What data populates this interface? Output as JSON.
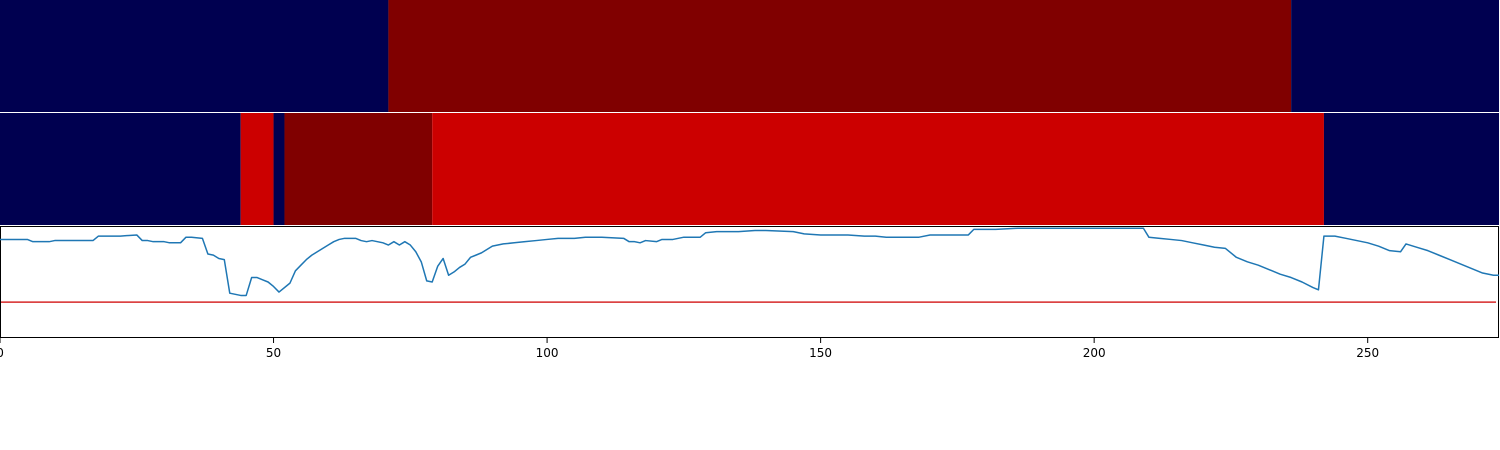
{
  "chart_data": [
    {
      "type": "heatmap",
      "xlim": [
        0,
        274
      ],
      "colors": {
        "low": "#000050",
        "mid": "#cc0000",
        "high": "#800000"
      },
      "segments": [
        {
          "start": 0,
          "end": 71,
          "level": "low"
        },
        {
          "start": 71,
          "end": 236,
          "level": "high"
        },
        {
          "start": 236,
          "end": 274,
          "level": "low"
        }
      ]
    },
    {
      "type": "heatmap",
      "xlim": [
        0,
        274
      ],
      "colors": {
        "low": "#000050",
        "mid": "#cc0000",
        "high": "#800000"
      },
      "segments": [
        {
          "start": 0,
          "end": 44,
          "level": "low"
        },
        {
          "start": 44,
          "end": 50,
          "level": "mid"
        },
        {
          "start": 50,
          "end": 52,
          "level": "low"
        },
        {
          "start": 52,
          "end": 79,
          "level": "high"
        },
        {
          "start": 79,
          "end": 242,
          "level": "mid"
        },
        {
          "start": 242,
          "end": 274,
          "level": "low"
        }
      ]
    },
    {
      "type": "line",
      "xlim": [
        0,
        274
      ],
      "ylim": [
        0,
        1
      ],
      "xticks": [
        0,
        50,
        100,
        150,
        200,
        250
      ],
      "xlabel": "",
      "ylabel": "",
      "grid": false,
      "line_color": "#1f77b4",
      "threshold": 0.32,
      "threshold_color": "#d62728",
      "series": [
        {
          "points": [
            [
              0,
              0.88
            ],
            [
              5,
              0.88
            ],
            [
              6,
              0.86
            ],
            [
              9,
              0.86
            ],
            [
              10,
              0.87
            ],
            [
              13,
              0.87
            ],
            [
              17,
              0.87
            ],
            [
              18,
              0.91
            ],
            [
              22,
              0.91
            ],
            [
              25,
              0.92
            ],
            [
              26,
              0.87
            ],
            [
              27,
              0.87
            ],
            [
              28,
              0.86
            ],
            [
              30,
              0.86
            ],
            [
              31,
              0.85
            ],
            [
              33,
              0.85
            ],
            [
              34,
              0.9
            ],
            [
              35,
              0.9
            ],
            [
              37,
              0.89
            ],
            [
              38,
              0.75
            ],
            [
              39,
              0.74
            ],
            [
              40,
              0.71
            ],
            [
              41,
              0.7
            ],
            [
              42,
              0.4
            ],
            [
              44,
              0.38
            ],
            [
              45,
              0.38
            ],
            [
              46,
              0.54
            ],
            [
              47,
              0.54
            ],
            [
              48,
              0.52
            ],
            [
              49,
              0.5
            ],
            [
              50,
              0.46
            ],
            [
              51,
              0.41
            ],
            [
              53,
              0.49
            ],
            [
              54,
              0.6
            ],
            [
              55,
              0.65
            ],
            [
              56,
              0.7
            ],
            [
              57,
              0.74
            ],
            [
              58,
              0.77
            ],
            [
              59,
              0.8
            ],
            [
              60,
              0.83
            ],
            [
              61,
              0.86
            ],
            [
              62,
              0.88
            ],
            [
              63,
              0.89
            ],
            [
              64,
              0.89
            ],
            [
              65,
              0.89
            ],
            [
              66,
              0.87
            ],
            [
              67,
              0.86
            ],
            [
              68,
              0.87
            ],
            [
              69,
              0.86
            ],
            [
              70,
              0.85
            ],
            [
              71,
              0.83
            ],
            [
              72,
              0.86
            ],
            [
              73,
              0.83
            ],
            [
              74,
              0.86
            ],
            [
              75,
              0.83
            ],
            [
              76,
              0.77
            ],
            [
              77,
              0.68
            ],
            [
              78,
              0.51
            ],
            [
              79,
              0.5
            ],
            [
              80,
              0.64
            ],
            [
              81,
              0.71
            ],
            [
              82,
              0.56
            ],
            [
              83,
              0.59
            ],
            [
              84,
              0.63
            ],
            [
              85,
              0.66
            ],
            [
              86,
              0.72
            ],
            [
              87,
              0.74
            ],
            [
              88,
              0.76
            ],
            [
              89,
              0.79
            ],
            [
              90,
              0.82
            ],
            [
              92,
              0.84
            ],
            [
              94,
              0.85
            ],
            [
              96,
              0.86
            ],
            [
              98,
              0.87
            ],
            [
              100,
              0.88
            ],
            [
              102,
              0.89
            ],
            [
              105,
              0.89
            ],
            [
              107,
              0.9
            ],
            [
              110,
              0.9
            ],
            [
              114,
              0.89
            ],
            [
              115,
              0.86
            ],
            [
              116,
              0.86
            ],
            [
              117,
              0.85
            ],
            [
              118,
              0.87
            ],
            [
              120,
              0.86
            ],
            [
              121,
              0.88
            ],
            [
              123,
              0.88
            ],
            [
              125,
              0.9
            ],
            [
              128,
              0.9
            ],
            [
              129,
              0.94
            ],
            [
              131,
              0.95
            ],
            [
              135,
              0.95
            ],
            [
              138,
              0.96
            ],
            [
              140,
              0.96
            ],
            [
              145,
              0.95
            ],
            [
              147,
              0.93
            ],
            [
              150,
              0.92
            ],
            [
              155,
              0.92
            ],
            [
              158,
              0.91
            ],
            [
              160,
              0.91
            ],
            [
              162,
              0.9
            ],
            [
              165,
              0.9
            ],
            [
              168,
              0.9
            ],
            [
              170,
              0.92
            ],
            [
              173,
              0.92
            ],
            [
              177,
              0.92
            ],
            [
              178,
              0.97
            ],
            [
              182,
              0.97
            ],
            [
              186,
              0.98
            ],
            [
              190,
              0.98
            ],
            [
              195,
              0.98
            ],
            [
              200,
              0.98
            ],
            [
              205,
              0.98
            ],
            [
              209,
              0.98
            ],
            [
              210,
              0.9
            ],
            [
              212,
              0.89
            ],
            [
              214,
              0.88
            ],
            [
              216,
              0.87
            ],
            [
              218,
              0.85
            ],
            [
              220,
              0.83
            ],
            [
              222,
              0.81
            ],
            [
              224,
              0.8
            ],
            [
              226,
              0.72
            ],
            [
              228,
              0.68
            ],
            [
              230,
              0.65
            ],
            [
              232,
              0.61
            ],
            [
              234,
              0.57
            ],
            [
              236,
              0.54
            ],
            [
              238,
              0.5
            ],
            [
              240,
              0.45
            ],
            [
              241,
              0.43
            ],
            [
              242,
              0.91
            ],
            [
              244,
              0.91
            ],
            [
              246,
              0.89
            ],
            [
              248,
              0.87
            ],
            [
              250,
              0.85
            ],
            [
              252,
              0.82
            ],
            [
              254,
              0.78
            ],
            [
              256,
              0.77
            ],
            [
              257,
              0.84
            ],
            [
              259,
              0.81
            ],
            [
              261,
              0.78
            ],
            [
              263,
              0.74
            ],
            [
              265,
              0.7
            ],
            [
              267,
              0.66
            ],
            [
              269,
              0.62
            ],
            [
              271,
              0.58
            ],
            [
              273,
              0.56
            ],
            [
              274,
              0.56
            ]
          ]
        }
      ]
    }
  ]
}
